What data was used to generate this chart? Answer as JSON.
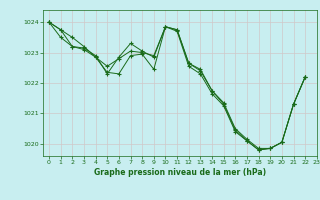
{
  "title": "Graphe pression niveau de la mer (hPa)",
  "background_color": "#c8eef0",
  "line_color": "#1a6b1a",
  "grid_color": "#d0c8c8",
  "xlim": [
    -0.5,
    23
  ],
  "ylim": [
    1019.6,
    1024.4
  ],
  "yticks": [
    1020,
    1021,
    1022,
    1023,
    1024
  ],
  "xticks": [
    0,
    1,
    2,
    3,
    4,
    5,
    6,
    7,
    8,
    9,
    10,
    11,
    12,
    13,
    14,
    15,
    16,
    17,
    18,
    19,
    20,
    21,
    22,
    23
  ],
  "series1": {
    "x": [
      0,
      1,
      2,
      3,
      4,
      5,
      6,
      7,
      8,
      9,
      10,
      11,
      12,
      13,
      14,
      15,
      16,
      17,
      18,
      19,
      20,
      21,
      22
    ],
    "y": [
      1024.0,
      1023.75,
      1023.5,
      1023.2,
      1022.85,
      1022.55,
      1022.8,
      1023.05,
      1023.0,
      1022.9,
      1023.85,
      1023.75,
      1022.65,
      1022.45,
      1021.75,
      1021.35,
      1020.5,
      1020.15,
      1019.85,
      1019.85,
      1020.05,
      1021.3,
      1022.2
    ]
  },
  "series2": {
    "x": [
      0,
      1,
      2,
      3,
      4,
      5,
      6,
      7,
      8,
      9,
      10,
      11,
      12,
      13,
      14,
      15,
      16,
      17,
      18,
      19,
      20,
      21,
      22
    ],
    "y": [
      1024.0,
      1023.5,
      1023.2,
      1023.1,
      1022.85,
      1022.35,
      1022.3,
      1022.9,
      1022.95,
      1022.45,
      1023.85,
      1023.7,
      1022.55,
      1022.3,
      1021.65,
      1021.25,
      1020.4,
      1020.1,
      1019.8,
      1019.85,
      1020.05,
      1021.3,
      1022.2
    ]
  },
  "series3": {
    "x": [
      0,
      1,
      2,
      3,
      4,
      5,
      6,
      7,
      8,
      9,
      10,
      11,
      12,
      13,
      14,
      15,
      16,
      17,
      18,
      19,
      20,
      21,
      22
    ],
    "y": [
      1024.0,
      1023.75,
      1023.2,
      1023.15,
      1022.9,
      1022.3,
      1022.85,
      1023.3,
      1023.05,
      1022.85,
      1023.85,
      1023.75,
      1022.65,
      1022.4,
      1021.75,
      1021.3,
      1020.45,
      1020.1,
      1019.8,
      1019.85,
      1020.05,
      1021.3,
      1022.2
    ]
  },
  "figsize": [
    3.2,
    2.0
  ],
  "dpi": 100
}
